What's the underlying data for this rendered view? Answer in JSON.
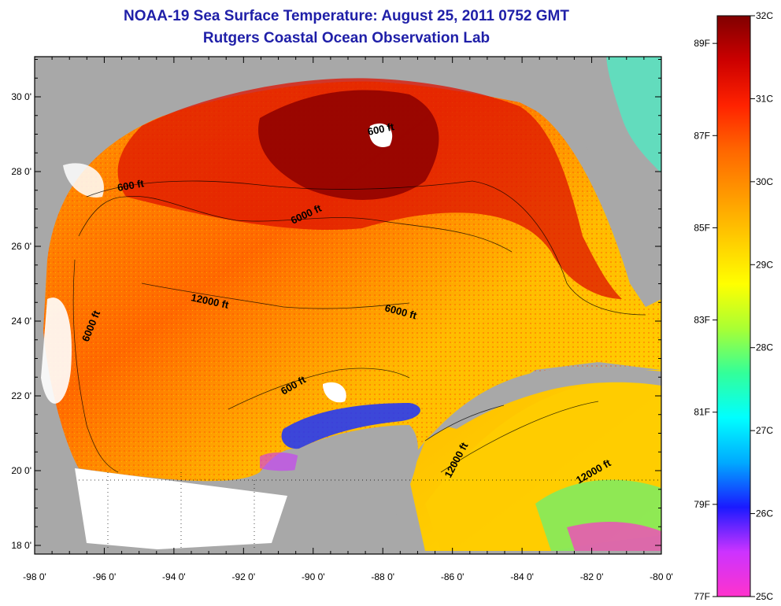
{
  "title": "NOAA-19 Sea Surface Temperature:  August 25, 2011 0752 GMT",
  "subtitle": "Rutgers Coastal Ocean Observation Lab",
  "axes": {
    "x_ticks": [
      "-98 0'",
      "-96 0'",
      "-94 0'",
      "-92 0'",
      "-90 0'",
      "-88 0'",
      "-86 0'",
      "-84 0'",
      "-82 0'",
      "-80 0'"
    ],
    "y_ticks": [
      "30 0'",
      "28 0'",
      "26 0'",
      "24 0'",
      "22 0'",
      "20 0'",
      "18 0'"
    ]
  },
  "contour_labels": [
    "600 ft",
    "600 ft",
    "6000 ft",
    "12000 ft",
    "6000 ft",
    "6000 ft",
    "600 ft",
    "12000 ft",
    "12000 ft"
  ],
  "colorbar": {
    "celsius_labels": [
      "32C",
      "31C",
      "30C",
      "29C",
      "28C",
      "27C",
      "26C",
      "25C"
    ],
    "fahrenheit_labels": [
      "89F",
      "87F",
      "85F",
      "83F",
      "81F",
      "79F",
      "77F"
    ],
    "colors": [
      "#ff33cc",
      "#cc33ff",
      "#1a1aff",
      "#00aaff",
      "#00ffff",
      "#33ff99",
      "#aaff33",
      "#ffff00",
      "#ffcc00",
      "#ff9900",
      "#ff6600",
      "#ff2200",
      "#cc0000",
      "#800000"
    ]
  },
  "colors": {
    "land": "#a8a8a8",
    "no_data": "#ffffff",
    "title": "#1f1fa8"
  }
}
